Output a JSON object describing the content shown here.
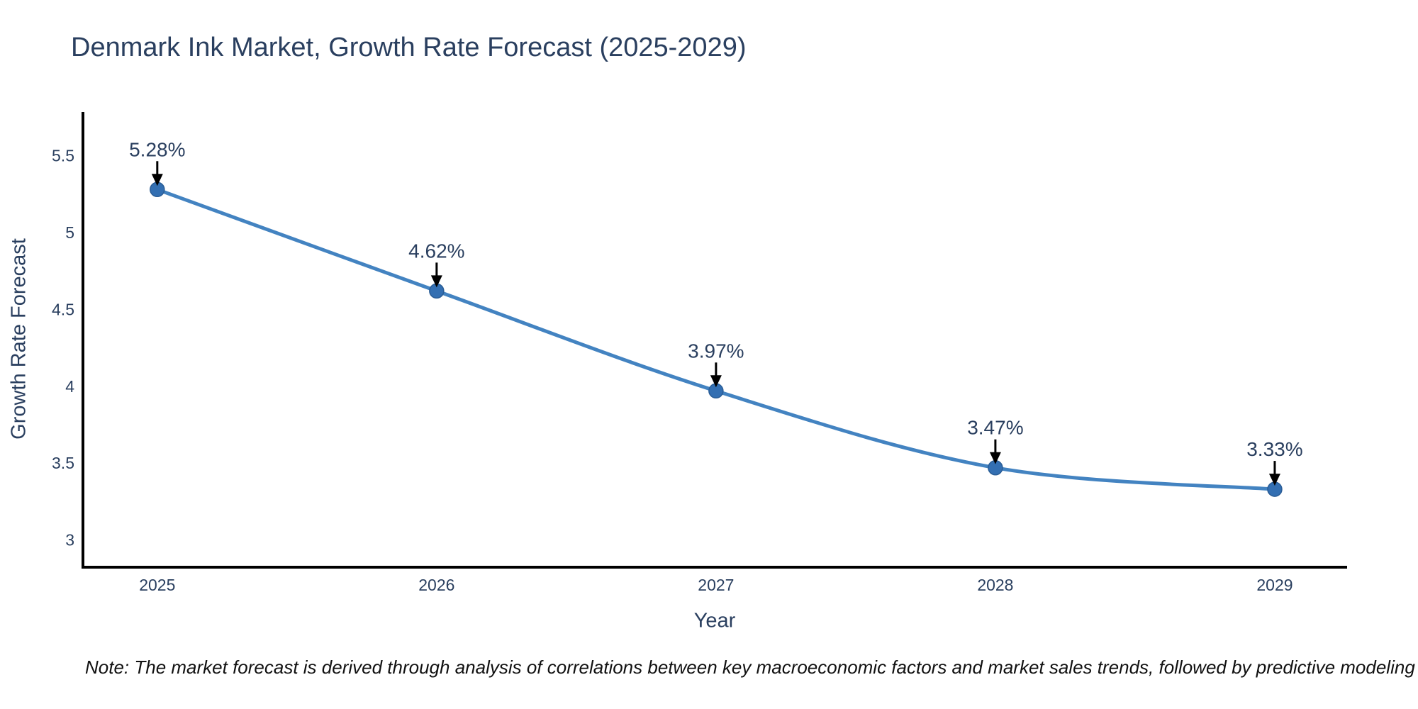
{
  "chart_data": {
    "type": "line",
    "title": "Denmark Ink Market, Growth Rate Forecast (2025-2029)",
    "xlabel": "Year",
    "ylabel": "Growth Rate Forecast",
    "x": [
      2025,
      2026,
      2027,
      2028,
      2029
    ],
    "series": [
      {
        "name": "Growth Rate Forecast",
        "values": [
          5.28,
          4.62,
          3.97,
          3.47,
          3.33
        ],
        "point_labels": [
          "5.28%",
          "4.62%",
          "3.97%",
          "3.47%",
          "3.33%"
        ]
      }
    ],
    "yticks": [
      3,
      3.5,
      4,
      4.5,
      5,
      5.5
    ],
    "xticks": [
      2025,
      2026,
      2027,
      2028,
      2029
    ],
    "xlim": [
      2024.734,
      2029.259
    ],
    "ylim": [
      2.823,
      5.784
    ],
    "grid": false,
    "legend": "none",
    "line_shape": "spline",
    "colors": {
      "line": "#4383c1",
      "marker": "#336fb2",
      "marker_edge": "#2a5d96",
      "title_text": "#2a3f5f",
      "tick_text": "#2a3f5f",
      "axis_line": "#000000",
      "annotation_text": "#2a3f5f",
      "annotation_arrow": "#000000",
      "background": "#ffffff"
    }
  },
  "note": {
    "text": "Note: The market forecast is derived through analysis of correlations between key macroeconomic factors and market sales trends, followed by predictive modeling to project future sales"
  }
}
